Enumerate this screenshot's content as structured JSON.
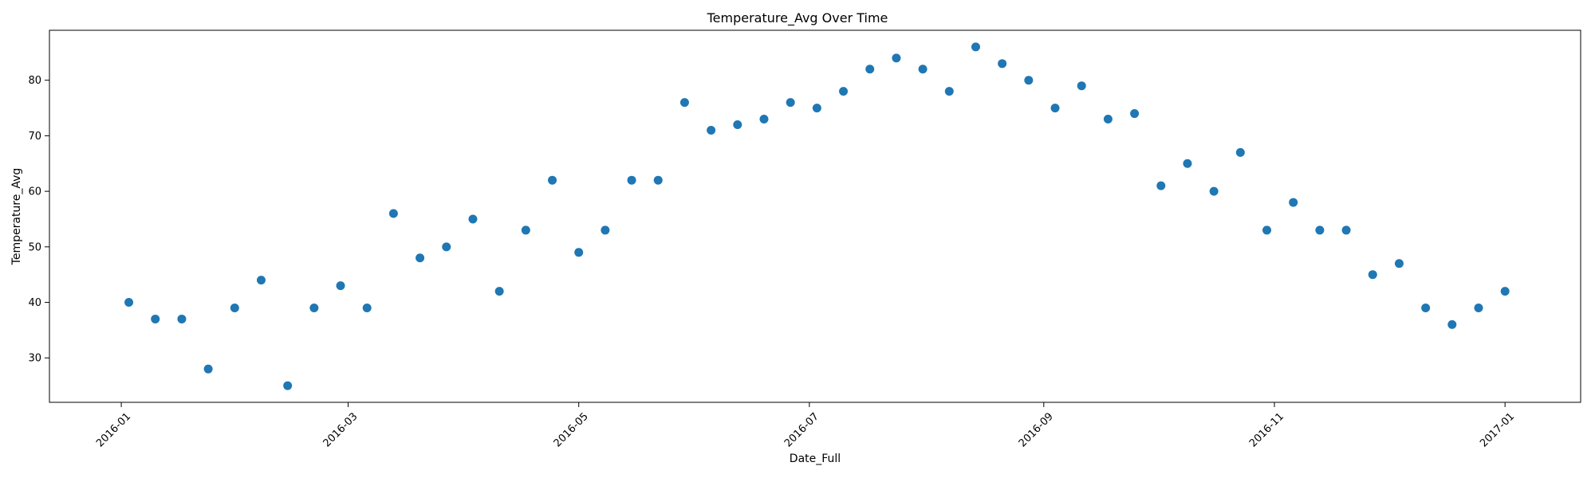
{
  "chart_data": {
    "type": "scatter",
    "title": "Temperature_Avg Over Time",
    "xlabel": "Date_Full",
    "ylabel": "Temperature_Avg",
    "xlim": [
      "2015-12-13",
      "2017-01-21"
    ],
    "ylim": [
      22,
      89
    ],
    "x_ticks": [
      {
        "date": "2016-01-01",
        "label": "2016-01"
      },
      {
        "date": "2016-03-01",
        "label": "2016-03"
      },
      {
        "date": "2016-05-01",
        "label": "2016-05"
      },
      {
        "date": "2016-07-01",
        "label": "2016-07"
      },
      {
        "date": "2016-09-01",
        "label": "2016-09"
      },
      {
        "date": "2016-11-01",
        "label": "2016-11"
      },
      {
        "date": "2017-01-01",
        "label": "2017-01"
      }
    ],
    "y_ticks": [
      30,
      40,
      50,
      60,
      70,
      80
    ],
    "grid": false,
    "marker_color": "#1f77b4",
    "series": [
      {
        "x": [
          "2016-01-03",
          "2016-01-10",
          "2016-01-17",
          "2016-01-24",
          "2016-01-31",
          "2016-02-07",
          "2016-02-14",
          "2016-02-21",
          "2016-02-28",
          "2016-03-06",
          "2016-03-13",
          "2016-03-20",
          "2016-03-27",
          "2016-04-03",
          "2016-04-10",
          "2016-04-17",
          "2016-04-24",
          "2016-05-01",
          "2016-05-08",
          "2016-05-15",
          "2016-05-22",
          "2016-05-29",
          "2016-06-05",
          "2016-06-12",
          "2016-06-19",
          "2016-06-26",
          "2016-07-03",
          "2016-07-10",
          "2016-07-17",
          "2016-07-24",
          "2016-07-31",
          "2016-08-07",
          "2016-08-14",
          "2016-08-21",
          "2016-08-28",
          "2016-09-04",
          "2016-09-11",
          "2016-09-18",
          "2016-09-25",
          "2016-10-02",
          "2016-10-09",
          "2016-10-16",
          "2016-10-23",
          "2016-10-30",
          "2016-11-06",
          "2016-11-13",
          "2016-11-20",
          "2016-11-27",
          "2016-12-04",
          "2016-12-11",
          "2016-12-18",
          "2016-12-25",
          "2017-01-01"
        ],
        "y": [
          40,
          37,
          37,
          28,
          39,
          44,
          25,
          39,
          43,
          39,
          56,
          48,
          50,
          55,
          42,
          53,
          62,
          49,
          53,
          62,
          62,
          76,
          71,
          72,
          73,
          76,
          75,
          78,
          82,
          84,
          82,
          78,
          86,
          83,
          80,
          75,
          79,
          73,
          74,
          61,
          65,
          60,
          67,
          53,
          58,
          53,
          53,
          45,
          47,
          39,
          36,
          39,
          42
        ]
      }
    ]
  }
}
